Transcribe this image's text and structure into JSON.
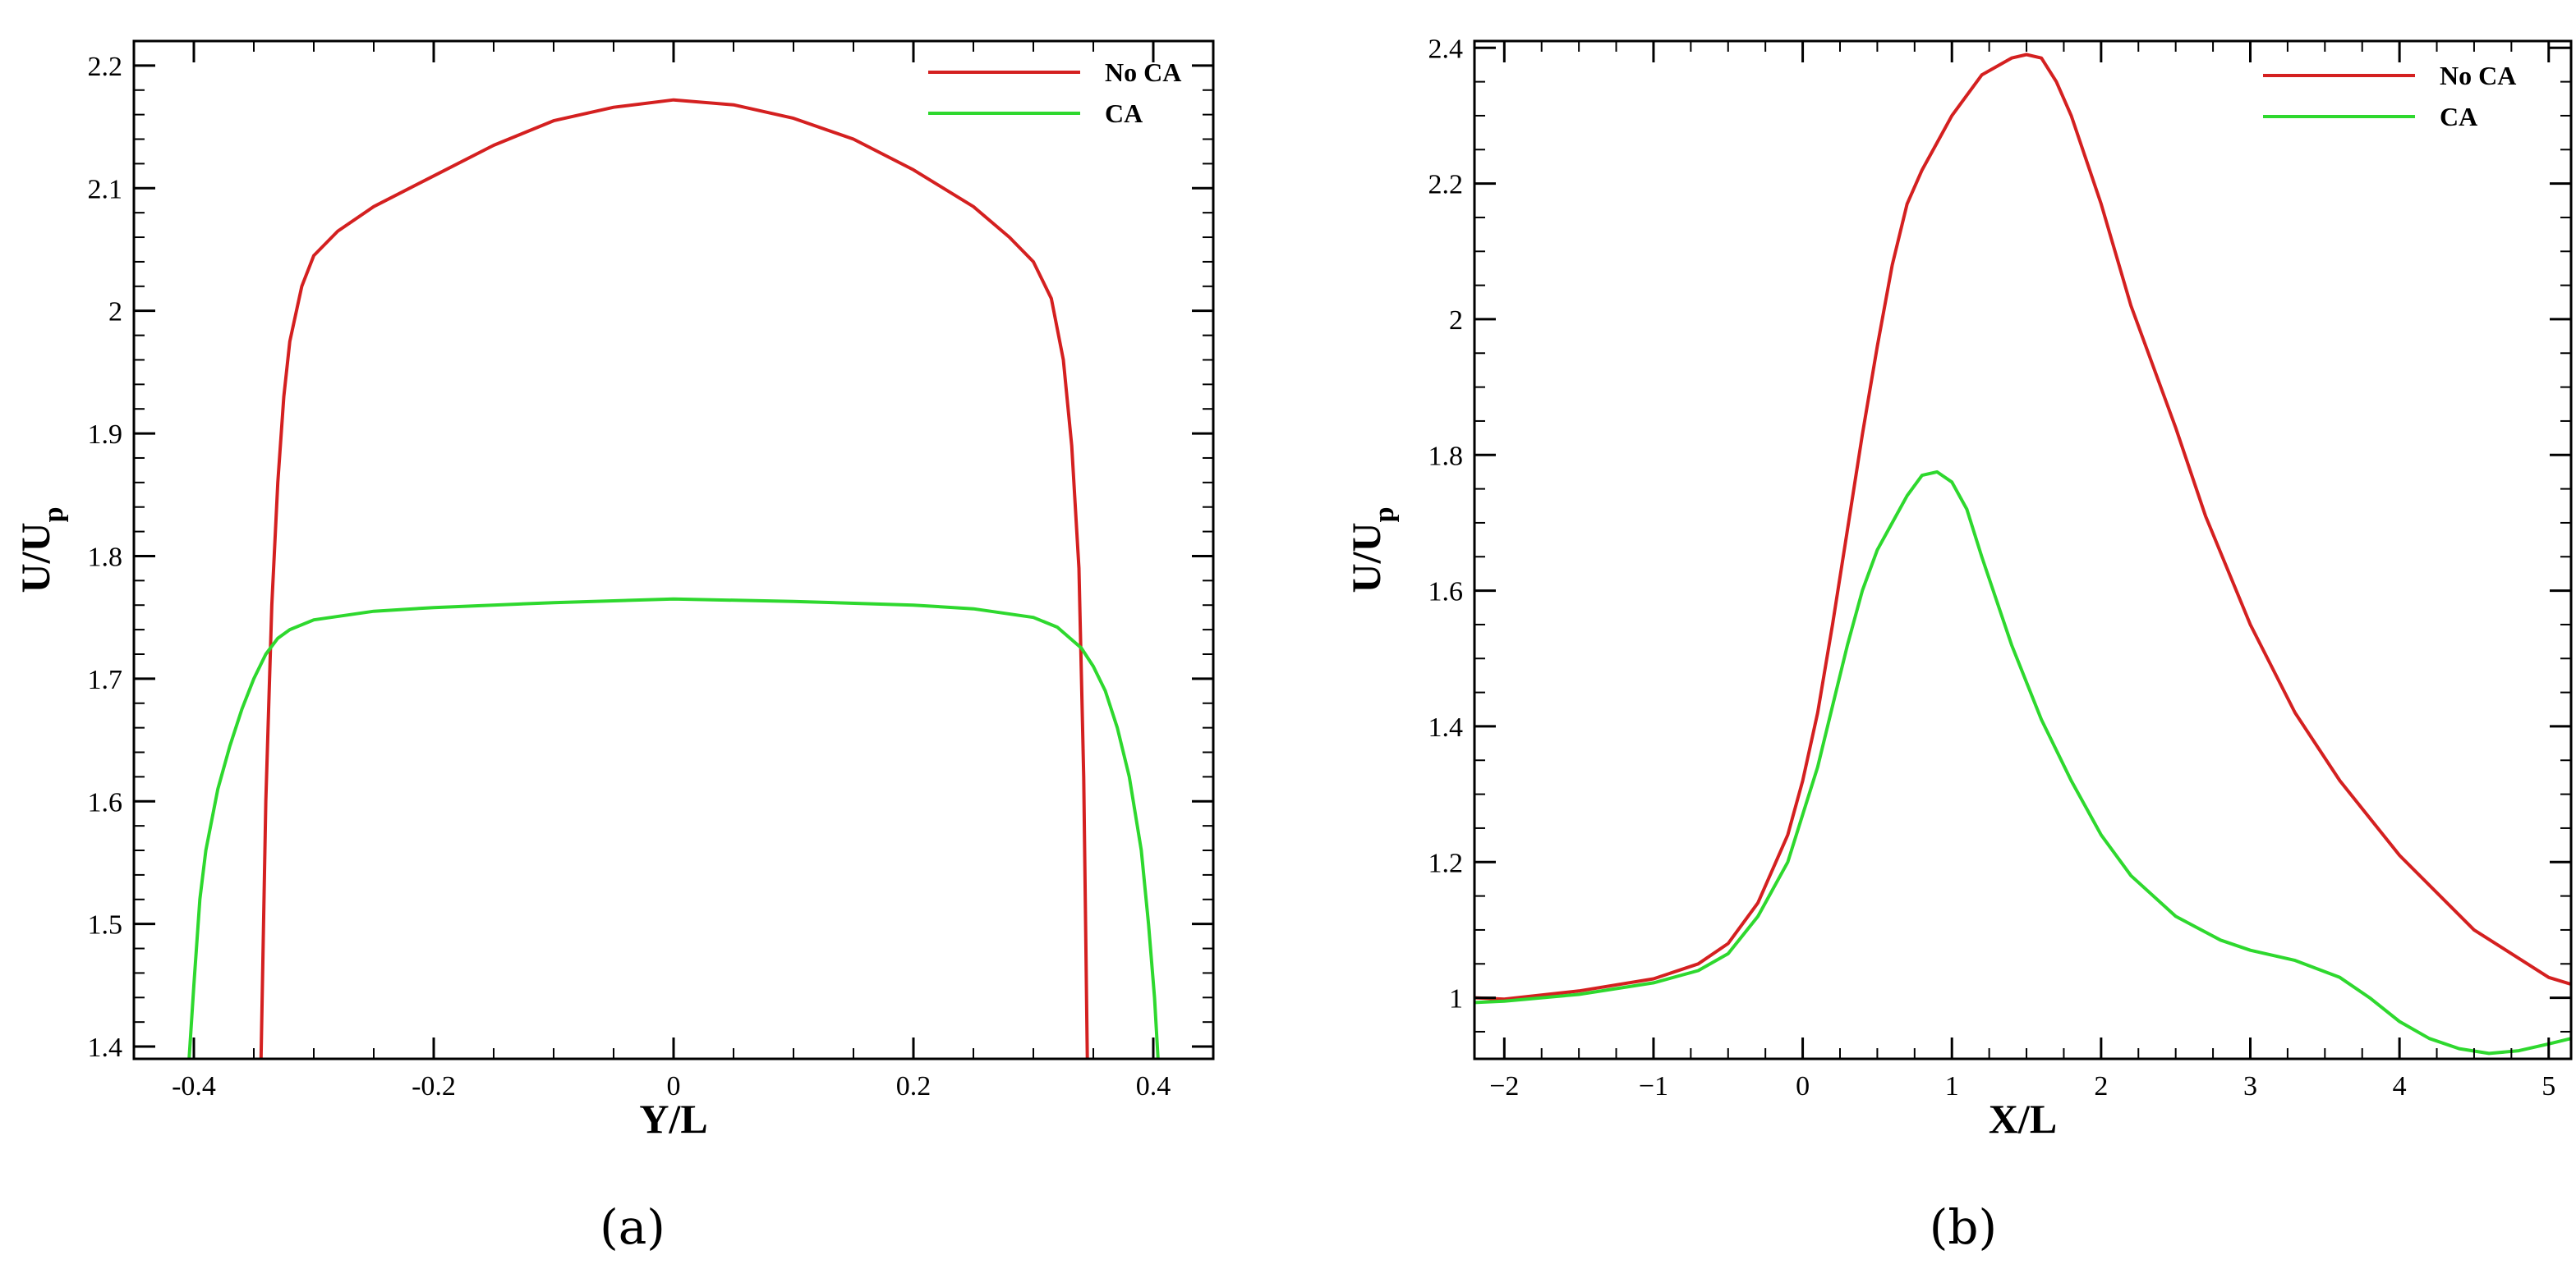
{
  "chart_data": [
    {
      "type": "line",
      "panel_label": "(a)",
      "xlabel": "Y/L",
      "ylabel_main": "U/U",
      "ylabel_sub": "p",
      "xlim": [
        -0.45,
        0.45
      ],
      "ylim": [
        1.39,
        2.22
      ],
      "xticks": [
        -0.4,
        -0.2,
        0,
        0.2,
        0.4
      ],
      "xtick_labels": [
        "-0.4",
        "-0.2",
        "0",
        "0.2",
        "0.4"
      ],
      "xminor": 0.05,
      "yticks": [
        1.4,
        1.5,
        1.6,
        1.7,
        1.8,
        1.9,
        2.0,
        2.1,
        2.2
      ],
      "ytick_labels": [
        "1.4",
        "1.5",
        "1.6",
        "1.7",
        "1.8",
        "1.9",
        "2",
        "2.1",
        "2.2"
      ],
      "yminor": 0.02,
      "legend_position": "top-right",
      "series": [
        {
          "name": "No CA",
          "color": "#d42020",
          "points": [
            [
              -0.344,
              1.39
            ],
            [
              -0.34,
              1.6
            ],
            [
              -0.335,
              1.76
            ],
            [
              -0.33,
              1.86
            ],
            [
              -0.325,
              1.93
            ],
            [
              -0.32,
              1.975
            ],
            [
              -0.31,
              2.02
            ],
            [
              -0.3,
              2.045
            ],
            [
              -0.28,
              2.065
            ],
            [
              -0.25,
              2.085
            ],
            [
              -0.2,
              2.11
            ],
            [
              -0.15,
              2.135
            ],
            [
              -0.1,
              2.155
            ],
            [
              -0.05,
              2.166
            ],
            [
              0.0,
              2.172
            ],
            [
              0.05,
              2.168
            ],
            [
              0.1,
              2.157
            ],
            [
              0.15,
              2.14
            ],
            [
              0.2,
              2.115
            ],
            [
              0.25,
              2.085
            ],
            [
              0.28,
              2.06
            ],
            [
              0.3,
              2.04
            ],
            [
              0.315,
              2.01
            ],
            [
              0.325,
              1.96
            ],
            [
              0.332,
              1.89
            ],
            [
              0.338,
              1.79
            ],
            [
              0.342,
              1.62
            ],
            [
              0.345,
              1.39
            ]
          ]
        },
        {
          "name": "CA",
          "color": "#2ed82e",
          "points": [
            [
              -0.404,
              1.39
            ],
            [
              -0.4,
              1.45
            ],
            [
              -0.395,
              1.52
            ],
            [
              -0.39,
              1.56
            ],
            [
              -0.38,
              1.61
            ],
            [
              -0.37,
              1.645
            ],
            [
              -0.36,
              1.675
            ],
            [
              -0.35,
              1.7
            ],
            [
              -0.34,
              1.72
            ],
            [
              -0.33,
              1.733
            ],
            [
              -0.32,
              1.74
            ],
            [
              -0.3,
              1.748
            ],
            [
              -0.25,
              1.755
            ],
            [
              -0.2,
              1.758
            ],
            [
              -0.1,
              1.762
            ],
            [
              0.0,
              1.765
            ],
            [
              0.1,
              1.763
            ],
            [
              0.2,
              1.76
            ],
            [
              0.25,
              1.757
            ],
            [
              0.3,
              1.75
            ],
            [
              0.32,
              1.742
            ],
            [
              0.34,
              1.725
            ],
            [
              0.35,
              1.71
            ],
            [
              0.36,
              1.69
            ],
            [
              0.37,
              1.66
            ],
            [
              0.38,
              1.62
            ],
            [
              0.39,
              1.56
            ],
            [
              0.396,
              1.5
            ],
            [
              0.401,
              1.44
            ],
            [
              0.404,
              1.39
            ]
          ]
        }
      ]
    },
    {
      "type": "line",
      "panel_label": "(b)",
      "xlabel": "X/L",
      "ylabel_main": "U/U",
      "ylabel_sub": "p",
      "xlim": [
        -2.2,
        5.15
      ],
      "ylim": [
        0.91,
        2.41
      ],
      "xticks": [
        -2,
        -1,
        0,
        1,
        2,
        3,
        4,
        5
      ],
      "xtick_labels": [
        "−2",
        "−1",
        "0",
        "1",
        "2",
        "3",
        "4",
        "5"
      ],
      "xminor": 0.25,
      "yticks": [
        1.0,
        1.2,
        1.4,
        1.6,
        1.8,
        2.0,
        2.2,
        2.4
      ],
      "ytick_labels": [
        "1",
        "1.2",
        "1.4",
        "1.6",
        "1.8",
        "2",
        "2.2",
        "2.4"
      ],
      "yminor": 0.05,
      "legend_position": "top-right",
      "series": [
        {
          "name": "No CA",
          "color": "#d42020",
          "points": [
            [
              -2.2,
              1.0
            ],
            [
              -2.0,
              0.998
            ],
            [
              -1.5,
              1.01
            ],
            [
              -1.0,
              1.028
            ],
            [
              -0.7,
              1.05
            ],
            [
              -0.5,
              1.08
            ],
            [
              -0.3,
              1.14
            ],
            [
              -0.1,
              1.24
            ],
            [
              0.0,
              1.32
            ],
            [
              0.1,
              1.42
            ],
            [
              0.2,
              1.55
            ],
            [
              0.3,
              1.69
            ],
            [
              0.4,
              1.83
            ],
            [
              0.5,
              1.96
            ],
            [
              0.6,
              2.08
            ],
            [
              0.7,
              2.17
            ],
            [
              0.8,
              2.22
            ],
            [
              0.9,
              2.26
            ],
            [
              1.0,
              2.3
            ],
            [
              1.2,
              2.36
            ],
            [
              1.4,
              2.385
            ],
            [
              1.5,
              2.39
            ],
            [
              1.6,
              2.385
            ],
            [
              1.7,
              2.35
            ],
            [
              1.8,
              2.3
            ],
            [
              2.0,
              2.17
            ],
            [
              2.2,
              2.02
            ],
            [
              2.5,
              1.84
            ],
            [
              2.7,
              1.71
            ],
            [
              3.0,
              1.55
            ],
            [
              3.3,
              1.42
            ],
            [
              3.6,
              1.32
            ],
            [
              4.0,
              1.21
            ],
            [
              4.5,
              1.1
            ],
            [
              5.0,
              1.03
            ],
            [
              5.15,
              1.02
            ]
          ]
        },
        {
          "name": "CA",
          "color": "#2ed82e",
          "points": [
            [
              -2.2,
              0.993
            ],
            [
              -2.0,
              0.995
            ],
            [
              -1.5,
              1.005
            ],
            [
              -1.0,
              1.022
            ],
            [
              -0.7,
              1.04
            ],
            [
              -0.5,
              1.065
            ],
            [
              -0.3,
              1.12
            ],
            [
              -0.1,
              1.2
            ],
            [
              0.0,
              1.27
            ],
            [
              0.1,
              1.34
            ],
            [
              0.2,
              1.43
            ],
            [
              0.3,
              1.52
            ],
            [
              0.4,
              1.6
            ],
            [
              0.5,
              1.66
            ],
            [
              0.6,
              1.7
            ],
            [
              0.7,
              1.74
            ],
            [
              0.8,
              1.77
            ],
            [
              0.9,
              1.775
            ],
            [
              1.0,
              1.76
            ],
            [
              1.1,
              1.72
            ],
            [
              1.2,
              1.65
            ],
            [
              1.4,
              1.52
            ],
            [
              1.6,
              1.41
            ],
            [
              1.8,
              1.32
            ],
            [
              2.0,
              1.24
            ],
            [
              2.2,
              1.18
            ],
            [
              2.5,
              1.12
            ],
            [
              2.8,
              1.085
            ],
            [
              3.0,
              1.07
            ],
            [
              3.3,
              1.055
            ],
            [
              3.6,
              1.03
            ],
            [
              3.8,
              1.0
            ],
            [
              4.0,
              0.965
            ],
            [
              4.2,
              0.94
            ],
            [
              4.4,
              0.925
            ],
            [
              4.6,
              0.918
            ],
            [
              4.8,
              0.922
            ],
            [
              5.0,
              0.932
            ],
            [
              5.15,
              0.94
            ]
          ]
        }
      ]
    }
  ]
}
